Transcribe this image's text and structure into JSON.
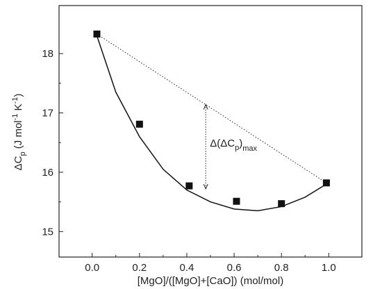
{
  "chart_data": {
    "type": "scatter",
    "x_label": "[MgO]/([MgO]+[CaO]) (mol/mol)",
    "y_label": [
      "ΔC",
      "p",
      " (J mol",
      "-1",
      " K",
      "-1",
      ")"
    ],
    "x": [
      0.02,
      0.2,
      0.41,
      0.61,
      0.8,
      0.99
    ],
    "values": [
      18.33,
      16.81,
      15.77,
      15.51,
      15.47,
      15.82
    ],
    "color": "#111111",
    "fit": {
      "x": [
        0.02,
        0.1,
        0.2,
        0.3,
        0.4,
        0.5,
        0.6,
        0.7,
        0.8,
        0.9,
        0.99
      ],
      "values": [
        18.3,
        17.35,
        16.6,
        16.05,
        15.7,
        15.5,
        15.38,
        15.35,
        15.42,
        15.58,
        15.8
      ]
    },
    "annotation": {
      "parts": [
        "Δ(ΔC",
        "p",
        ")",
        "max"
      ],
      "x": 0.48,
      "y": [
        17.14,
        15.72
      ]
    },
    "xlim": [
      -0.14,
      1.14
    ],
    "ylim": [
      14.57,
      18.81
    ],
    "xticks": [
      {
        "value": 0,
        "label": "0.0"
      },
      0.2,
      0.4,
      0.6,
      0.8,
      {
        "value": 1,
        "label": "1.0"
      }
    ],
    "yticks": [
      15,
      16,
      17,
      18
    ]
  }
}
